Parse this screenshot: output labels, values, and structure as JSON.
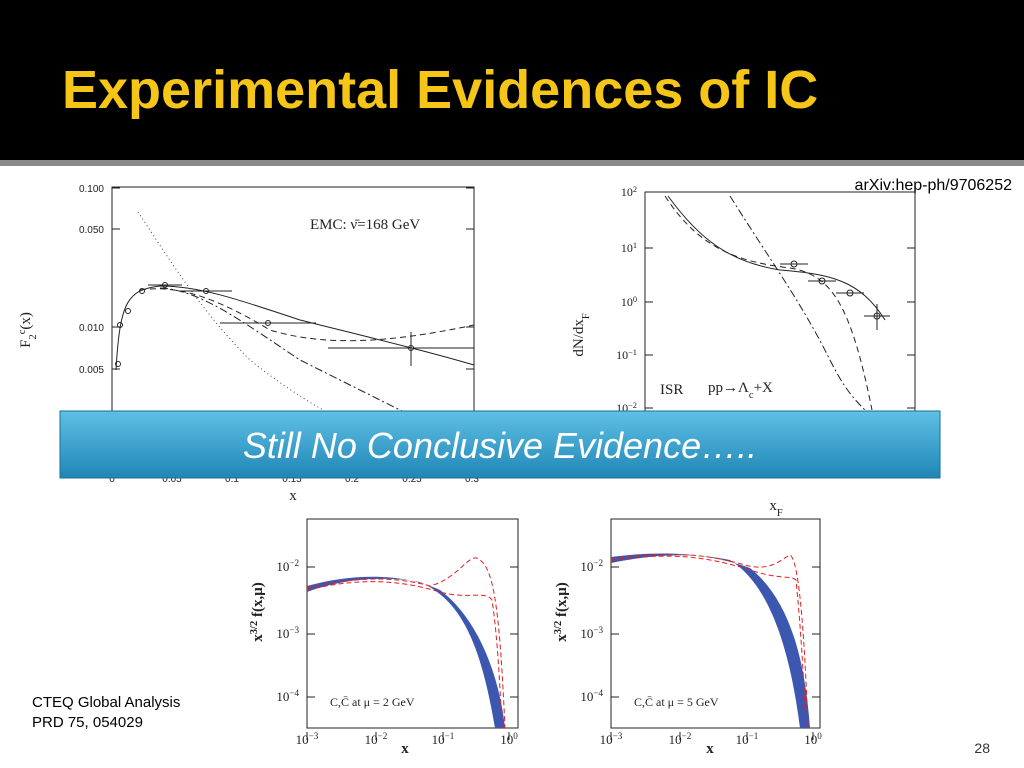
{
  "title": "Experimental Evidences of IC",
  "citation_top": "arXiv:hep-ph/9706252",
  "banner": "Still No Conclusive Evidence…..",
  "citation_bottom": [
    "CTEQ Global Analysis",
    "PRD 75, 054029"
  ],
  "page_number": "28",
  "plots": [
    {
      "ylabel": {
        "main": "F",
        "sub": "2",
        "sup": "c",
        "rest": "(x)"
      },
      "yticks": [
        "0.100",
        "0.050",
        "0.010",
        "0.005"
      ],
      "xticks": [
        "0",
        "0.05",
        "0.1",
        "0.15",
        "0.2",
        "0.25",
        "0.3"
      ],
      "xlabel": "x",
      "annotations": [
        "EMC: ν̄=168 GeV"
      ]
    },
    {
      "ylabel": {
        "main": "dN/dx",
        "sub": "F"
      },
      "yticks": [
        {
          "base": "10",
          "exp": "2"
        },
        {
          "base": "10",
          "exp": "1"
        },
        {
          "base": "10",
          "exp": "0"
        },
        {
          "base": "10",
          "exp": "−1"
        },
        {
          "base": "10",
          "exp": "−2"
        }
      ],
      "xlabel": {
        "main": "x",
        "sub": "F"
      },
      "annotations": [
        "ISR",
        {
          "pre": "pp→Λ",
          "sub": "c",
          "post": "+X"
        }
      ]
    },
    {
      "ylabel": {
        "main": "x",
        "sup": "3/2",
        "rest": " f(x,μ)"
      },
      "yticks": [
        {
          "base": "10",
          "exp": "−2"
        },
        {
          "base": "10",
          "exp": "−3"
        },
        {
          "base": "10",
          "exp": "−4"
        }
      ],
      "xticks": [
        {
          "base": "10",
          "exp": "−3"
        },
        {
          "base": "10",
          "exp": "−2"
        },
        {
          "base": "10",
          "exp": "−1"
        },
        {
          "base": "10",
          "exp": "0"
        }
      ],
      "xlabel": "x",
      "annotations": [
        "C,C̄  at μ = 2 GeV"
      ]
    },
    {
      "ylabel": {
        "main": "x",
        "sup": "3/2",
        "rest": " f(x,μ)"
      },
      "yticks": [
        {
          "base": "10",
          "exp": "−2"
        },
        {
          "base": "10",
          "exp": "−3"
        },
        {
          "base": "10",
          "exp": "−4"
        }
      ],
      "xticks": [
        {
          "base": "10",
          "exp": "−3"
        },
        {
          "base": "10",
          "exp": "−2"
        },
        {
          "base": "10",
          "exp": "−1"
        },
        {
          "base": "10",
          "exp": "0"
        }
      ],
      "xlabel": "x",
      "annotations": [
        "C,C̄  at μ = 5 GeV"
      ]
    }
  ]
}
